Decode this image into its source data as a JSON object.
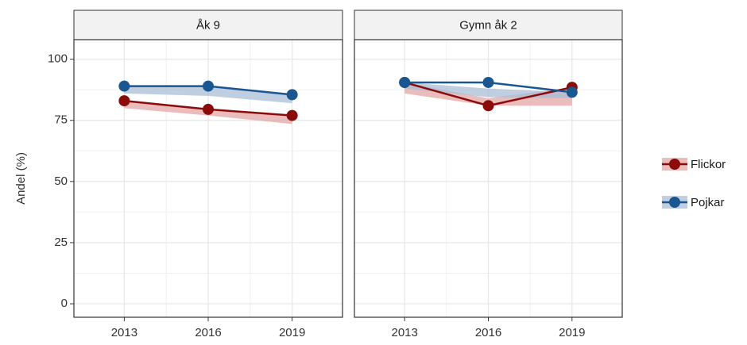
{
  "chart_data": {
    "type": "line",
    "ylabel": "Andel (%)",
    "x": [
      2013,
      2016,
      2019
    ],
    "xlim": [
      2011.2,
      2020.8
    ],
    "xticks": [
      2013,
      2016,
      2019
    ],
    "ylim": [
      -5.5,
      108
    ],
    "yticks": [
      0,
      25,
      50,
      75,
      100
    ],
    "grid": true,
    "minor_grid": true,
    "legend": "right",
    "panels": [
      {
        "title": "Åk 9",
        "series": [
          {
            "name": "Flickor",
            "color": "#8b0a0a",
            "ribbon_color": "#e3a6a6",
            "values": [
              83,
              79.5,
              77
            ],
            "lower": [
              80,
              77,
              73.5
            ],
            "upper": [
              83,
              79.5,
              77
            ]
          },
          {
            "name": "Pojkar",
            "color": "#1a5690",
            "ribbon_color": "#a9bed6",
            "values": [
              89,
              89,
              85.5
            ],
            "lower": [
              86,
              85,
              82
            ],
            "upper": [
              89,
              89,
              85.5
            ]
          }
        ]
      },
      {
        "title": "Gymn åk 2",
        "series": [
          {
            "name": "Flickor",
            "color": "#8b0a0a",
            "ribbon_color": "#e3a6a6",
            "values": [
              90.5,
              81,
              88.5
            ],
            "lower": [
              86,
              81,
              81
            ],
            "upper": [
              90.5,
              84,
              88.5
            ]
          },
          {
            "name": "Pojkar",
            "color": "#1a5690",
            "ribbon_color": "#a9bed6",
            "values": [
              90.5,
              90.5,
              86.5
            ],
            "lower": [
              88,
              84.5,
              84
            ],
            "upper": [
              90.5,
              88,
              86.5
            ]
          }
        ]
      }
    ]
  }
}
